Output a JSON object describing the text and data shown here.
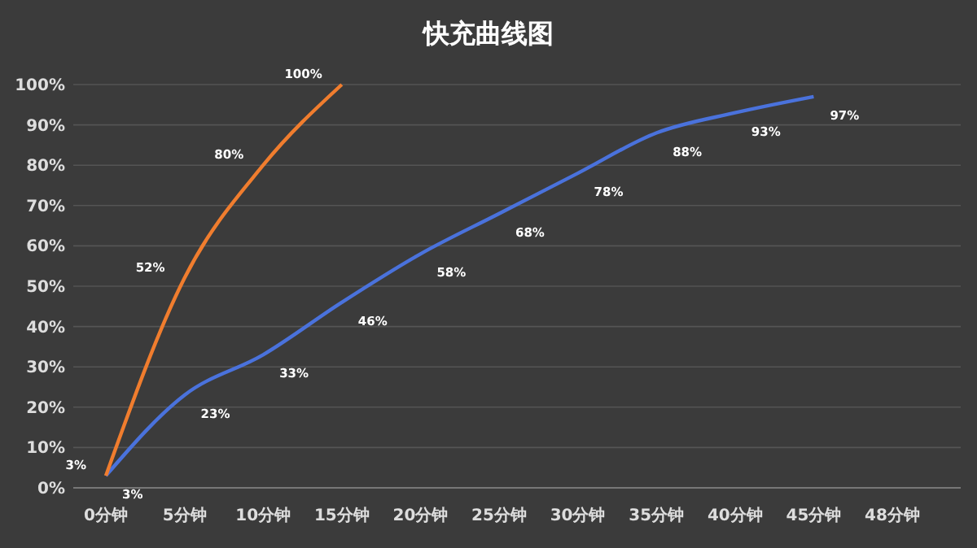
{
  "chart_data": {
    "type": "line",
    "title": "快充曲线图",
    "categories": [
      "0分钟",
      "5分钟",
      "10分钟",
      "15分钟",
      "20分钟",
      "25分钟",
      "30分钟",
      "35分钟",
      "40分钟",
      "45分钟",
      "48分钟"
    ],
    "series": [
      {
        "color": "#4a72dc",
        "values": [
          3,
          23,
          33,
          46,
          58,
          68,
          78,
          88,
          93,
          97,
          null
        ],
        "value_labels": [
          "3%",
          "23%",
          "33%",
          "46%",
          "58%",
          "68%",
          "78%",
          "88%",
          "93%",
          "97%",
          null
        ]
      },
      {
        "color": "#f07d2e",
        "values": [
          3,
          52,
          80,
          100,
          null,
          null,
          null,
          null,
          null,
          null,
          null
        ],
        "value_labels": [
          "3%",
          "52%",
          "80%",
          "100%",
          null,
          null,
          null,
          null,
          null,
          null,
          null
        ]
      }
    ],
    "ylim": [
      0,
      100
    ],
    "yticks": [
      {
        "value": 0,
        "label": "0%"
      },
      {
        "value": 10,
        "label": "10%"
      },
      {
        "value": 20,
        "label": "20%"
      },
      {
        "value": 30,
        "label": "30%"
      },
      {
        "value": 40,
        "label": "40%"
      },
      {
        "value": 50,
        "label": "50%"
      },
      {
        "value": 60,
        "label": "60%"
      },
      {
        "value": 70,
        "label": "70%"
      },
      {
        "value": 80,
        "label": "80%"
      },
      {
        "value": 90,
        "label": "90%"
      },
      {
        "value": 100,
        "label": "100%"
      }
    ],
    "grid": "y",
    "marker": "none",
    "line_style": "solid"
  }
}
